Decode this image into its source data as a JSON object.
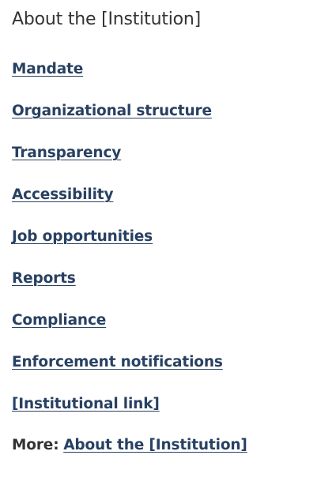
{
  "section": {
    "heading": "About the [Institution]",
    "links": [
      {
        "label": "Mandate"
      },
      {
        "label": "Organizational structure"
      },
      {
        "label": "Transparency"
      },
      {
        "label": "Accessibility"
      },
      {
        "label": "Job opportunities"
      },
      {
        "label": "Reports"
      },
      {
        "label": "Compliance"
      },
      {
        "label": "Enforcement notifications"
      },
      {
        "label": "[Institutional link]"
      }
    ],
    "more": {
      "prefix": "More:",
      "link_label": "About the [Institution]"
    }
  },
  "colors": {
    "link": "#284162",
    "text": "#333333",
    "background": "#ffffff"
  }
}
